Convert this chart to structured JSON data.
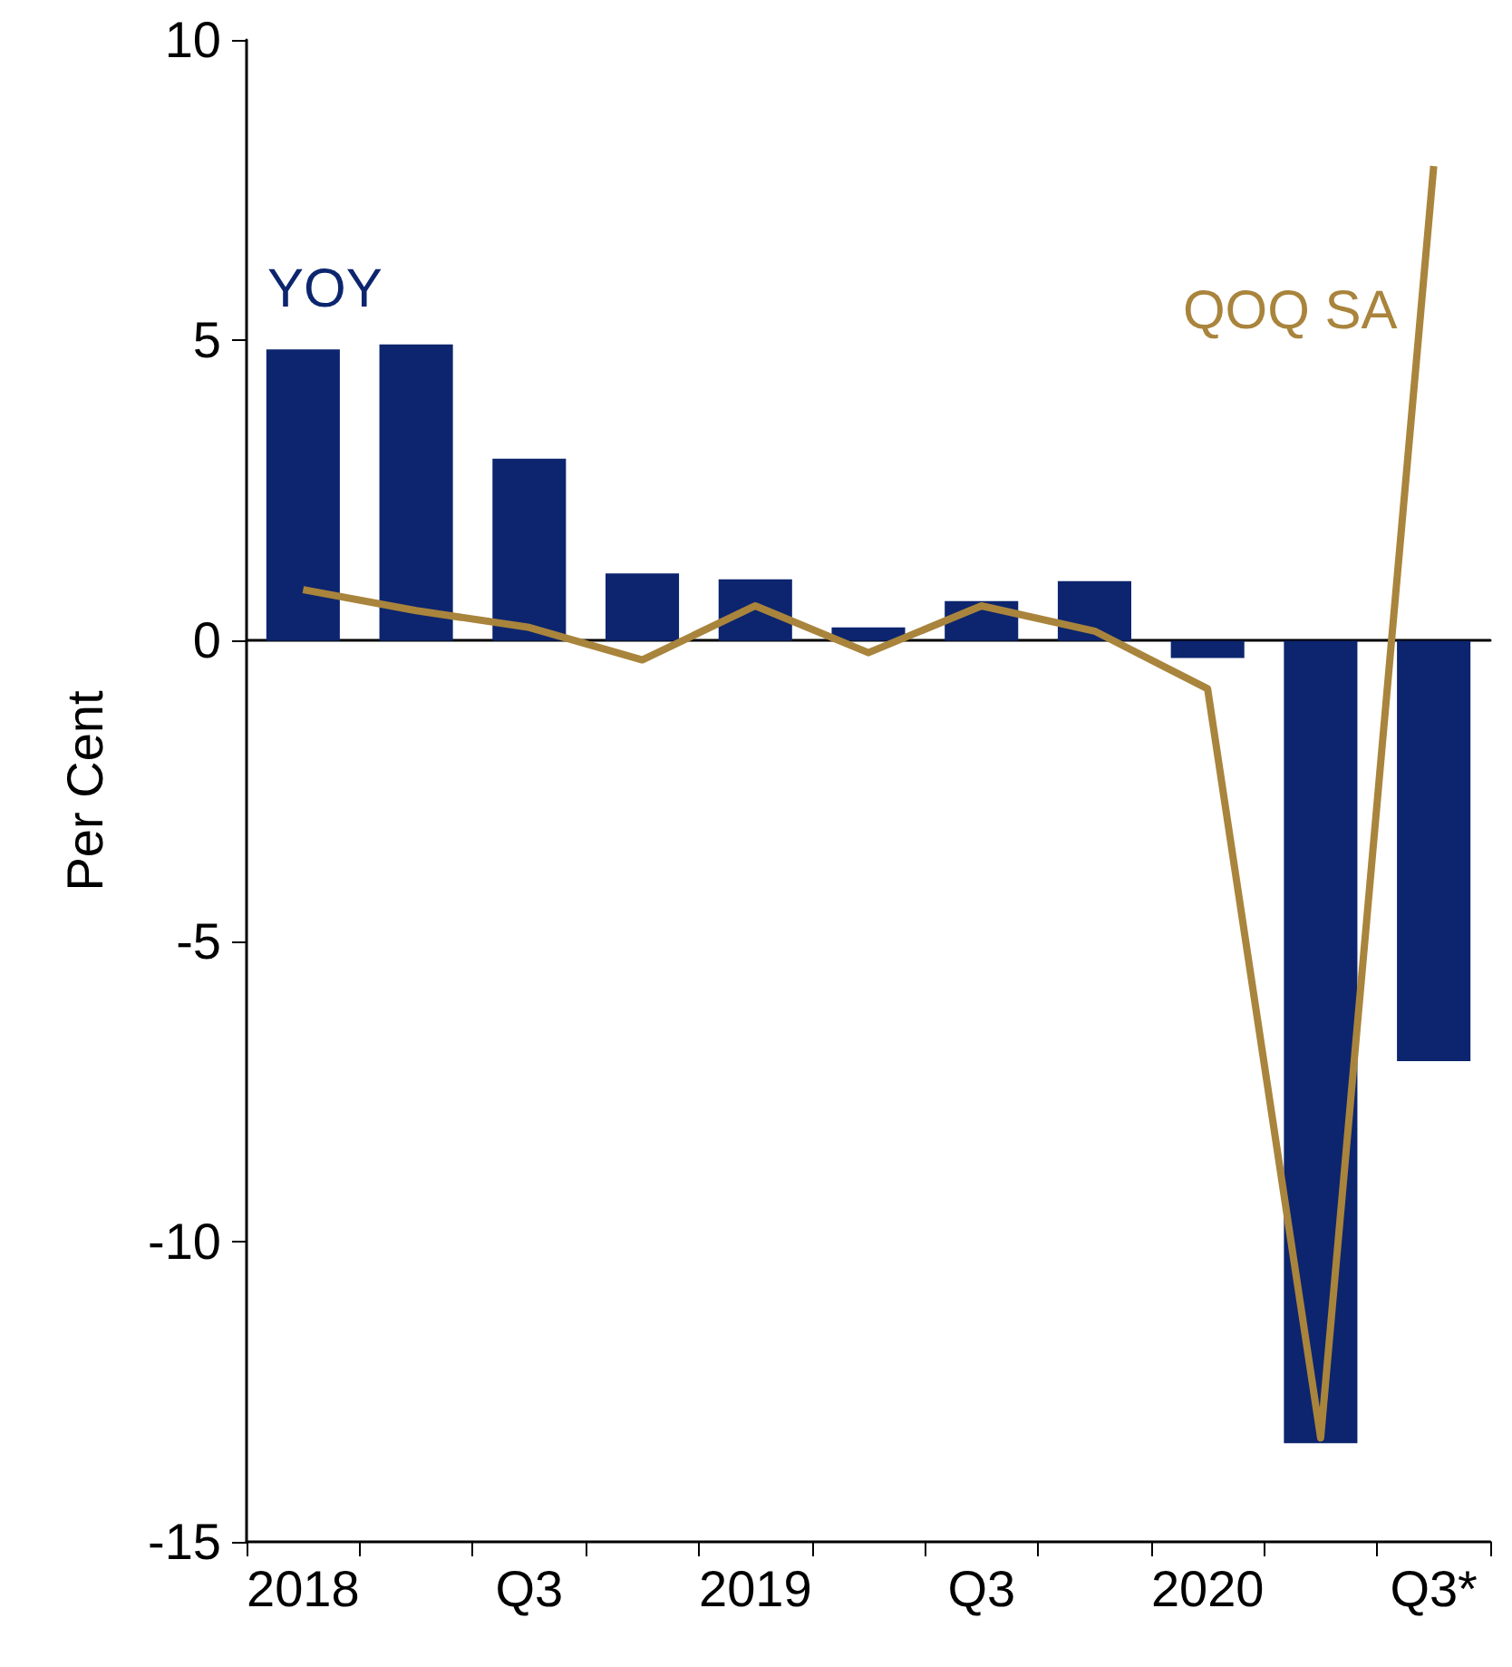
{
  "chart_data": {
    "type": "bar",
    "ylabel": "Per Cent",
    "categories": [
      "2018",
      null,
      "Q3",
      null,
      "2019",
      null,
      "Q3",
      null,
      "2020",
      null,
      "Q3*"
    ],
    "series": [
      {
        "name": "YOY",
        "color": "#0c256e",
        "values": [
          4.85,
          4.93,
          3.03,
          1.12,
          1.02,
          0.22,
          0.66,
          0.99,
          -0.29,
          -13.36,
          -7.0
        ]
      },
      {
        "name": "QOQ SA",
        "type": "line",
        "color": "#a9843c",
        "values": [
          0.85,
          0.5,
          0.22,
          -0.32,
          0.58,
          -0.2,
          0.58,
          0.16,
          -0.8,
          -13.27,
          7.9
        ]
      }
    ],
    "ylim": [
      -15,
      10
    ],
    "yticks": [
      -15,
      -10,
      -5,
      0,
      5,
      10
    ],
    "legend": false,
    "marker": "none"
  }
}
